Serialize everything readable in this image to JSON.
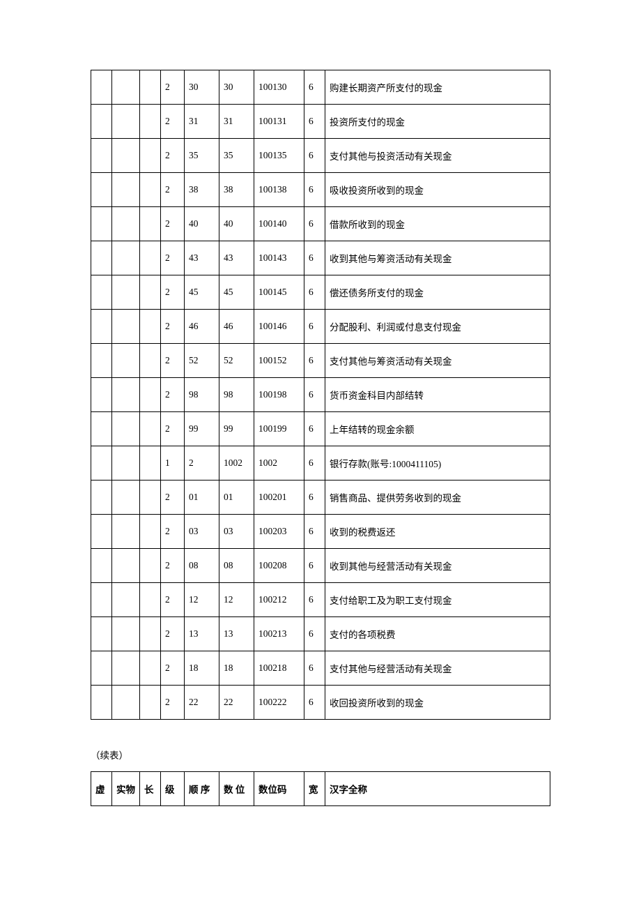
{
  "table1": {
    "rows": [
      {
        "c0": "",
        "c1": "",
        "c2": "",
        "c3": "2",
        "c4": "30",
        "c5": "30",
        "c6": "100130",
        "c7": "6",
        "c8": "购建长期资产所支付的现金"
      },
      {
        "c0": "",
        "c1": "",
        "c2": "",
        "c3": "2",
        "c4": "31",
        "c5": "31",
        "c6": "100131",
        "c7": "6",
        "c8": "投资所支付的现金"
      },
      {
        "c0": "",
        "c1": "",
        "c2": "",
        "c3": "2",
        "c4": "35",
        "c5": "35",
        "c6": "100135",
        "c7": "6",
        "c8": "支付其他与投资活动有关现金"
      },
      {
        "c0": "",
        "c1": "",
        "c2": "",
        "c3": "2",
        "c4": "38",
        "c5": "38",
        "c6": "100138",
        "c7": "6",
        "c8": "吸收投资所收到的现金"
      },
      {
        "c0": "",
        "c1": "",
        "c2": "",
        "c3": "2",
        "c4": "40",
        "c5": "40",
        "c6": "100140",
        "c7": "6",
        "c8": "借款所收到的现金"
      },
      {
        "c0": "",
        "c1": "",
        "c2": "",
        "c3": "2",
        "c4": "43",
        "c5": "43",
        "c6": "100143",
        "c7": "6",
        "c8": "收到其他与筹资活动有关现金"
      },
      {
        "c0": "",
        "c1": "",
        "c2": "",
        "c3": "2",
        "c4": "45",
        "c5": "45",
        "c6": "100145",
        "c7": "6",
        "c8": "偿还债务所支付的现金"
      },
      {
        "c0": "",
        "c1": "",
        "c2": "",
        "c3": "2",
        "c4": "46",
        "c5": "46",
        "c6": "100146",
        "c7": "6",
        "c8": "分配股利、利润或付息支付现金"
      },
      {
        "c0": "",
        "c1": "",
        "c2": "",
        "c3": "2",
        "c4": "52",
        "c5": "52",
        "c6": "100152",
        "c7": "6",
        "c8": "支付其他与筹资活动有关现金"
      },
      {
        "c0": "",
        "c1": "",
        "c2": "",
        "c3": "2",
        "c4": "98",
        "c5": "98",
        "c6": "100198",
        "c7": "6",
        "c8": "货币资金科目内部结转"
      },
      {
        "c0": "",
        "c1": "",
        "c2": "",
        "c3": "2",
        "c4": "99",
        "c5": "99",
        "c6": "100199",
        "c7": "6",
        "c8": "上年结转的现金余额"
      },
      {
        "c0": "",
        "c1": "",
        "c2": "",
        "c3": "1",
        "c4": "2",
        "c5": "1002",
        "c6": "1002",
        "c7": "6",
        "c8": "银行存款(账号:1000411105)"
      },
      {
        "c0": "",
        "c1": "",
        "c2": "",
        "c3": "2",
        "c4": "01",
        "c5": "01",
        "c6": "100201",
        "c7": "6",
        "c8": "销售商品、提供劳务收到的现金"
      },
      {
        "c0": "",
        "c1": "",
        "c2": "",
        "c3": "2",
        "c4": "03",
        "c5": "03",
        "c6": "100203",
        "c7": "6",
        "c8": "收到的税费返还"
      },
      {
        "c0": "",
        "c1": "",
        "c2": "",
        "c3": "2",
        "c4": "08",
        "c5": "08",
        "c6": "100208",
        "c7": "6",
        "c8": "收到其他与经营活动有关现金"
      },
      {
        "c0": "",
        "c1": "",
        "c2": "",
        "c3": "2",
        "c4": "12",
        "c5": "12",
        "c6": "100212",
        "c7": "6",
        "c8": "支付给职工及为职工支付现金"
      },
      {
        "c0": "",
        "c1": "",
        "c2": "",
        "c3": "2",
        "c4": "13",
        "c5": "13",
        "c6": "100213",
        "c7": "6",
        "c8": "支付的各项税费"
      },
      {
        "c0": "",
        "c1": "",
        "c2": "",
        "c3": "2",
        "c4": "18",
        "c5": "18",
        "c6": "100218",
        "c7": "6",
        "c8": "支付其他与经营活动有关现金"
      },
      {
        "c0": "",
        "c1": "",
        "c2": "",
        "c3": "2",
        "c4": "22",
        "c5": "22",
        "c6": "100222",
        "c7": "6",
        "c8": "收回投资所收到的现金"
      }
    ]
  },
  "continuation_label": "（续表）",
  "table2": {
    "headers": {
      "h0": "虚",
      "h1": "实物",
      "h2": "长",
      "h3": "级",
      "h4": "顺 序",
      "h5": "数 位",
      "h6": "数位码",
      "h7": "宽",
      "h8": "汉字全称"
    }
  },
  "colors": {
    "border": "#000000",
    "text": "#000000",
    "background": "#ffffff"
  }
}
